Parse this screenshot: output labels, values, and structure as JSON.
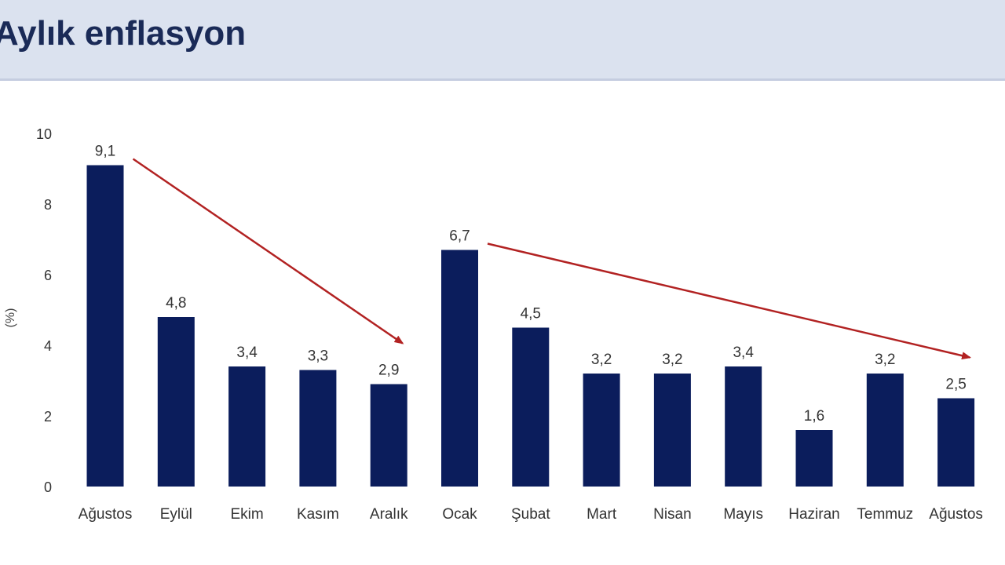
{
  "header": {
    "title": "Aylık enflasyon"
  },
  "chart_data": {
    "type": "bar",
    "title": "Aylık enflasyon",
    "ylabel": "(%)",
    "xlabel": "",
    "ylim": [
      0,
      10
    ],
    "yticks": [
      0,
      2,
      4,
      6,
      8,
      10
    ],
    "categories": [
      "Ağustos",
      "Eylül",
      "Ekim",
      "Kasım",
      "Aralık",
      "Ocak",
      "Şubat",
      "Mart",
      "Nisan",
      "Mayıs",
      "Haziran",
      "Temmuz",
      "Ağustos"
    ],
    "values": [
      9.1,
      4.8,
      3.4,
      3.3,
      2.9,
      6.7,
      4.5,
      3.2,
      3.2,
      3.4,
      1.6,
      3.2,
      2.5
    ],
    "data_labels": [
      "9,1",
      "4,8",
      "3,4",
      "3,3",
      "2,9",
      "6,7",
      "4,5",
      "3,2",
      "3,2",
      "3,4",
      "1,6",
      "3,2",
      "2,5"
    ],
    "bar_color": "#0b1d5c",
    "grid": false,
    "legend": "none",
    "annotations": [
      {
        "type": "arrow",
        "from_category": 0,
        "to_category": 4,
        "color": "#b22222"
      },
      {
        "type": "arrow",
        "from_category": 5,
        "to_category": 12,
        "color": "#b22222"
      }
    ]
  }
}
